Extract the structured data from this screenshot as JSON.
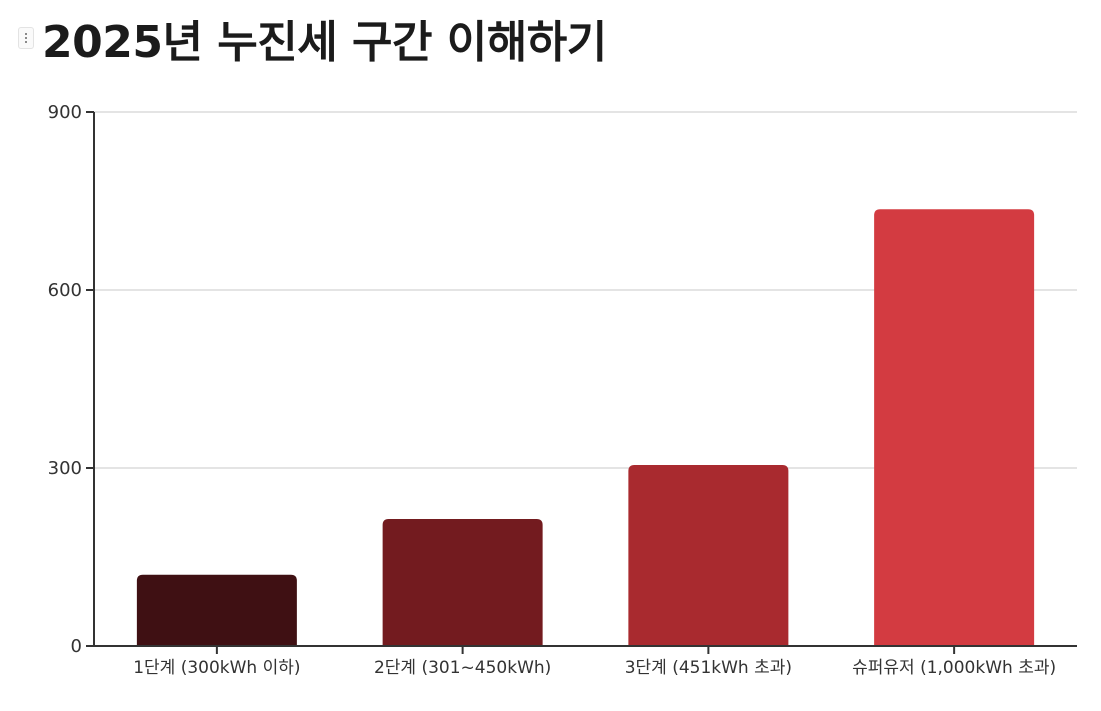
{
  "page": {
    "title": "2025년 누진세 구간 이해하기"
  },
  "chart_data": {
    "type": "bar",
    "title": "2025년 누진세 구간 이해하기",
    "xlabel": "",
    "ylabel": "",
    "categories": [
      "1단계 (300kWh 이하)",
      "2단계 (301~450kWh)",
      "3단계 (451kWh 초과)",
      "슈퍼유저 (1,000kWh 초과)"
    ],
    "values": [
      120,
      214,
      305,
      736
    ],
    "yticks": [
      0,
      300,
      600,
      900
    ],
    "ylim": [
      0,
      900
    ],
    "grid": true,
    "legend": "none",
    "colors": [
      "#3f1013",
      "#731b1f",
      "#a92a2f",
      "#d33b41"
    ]
  }
}
